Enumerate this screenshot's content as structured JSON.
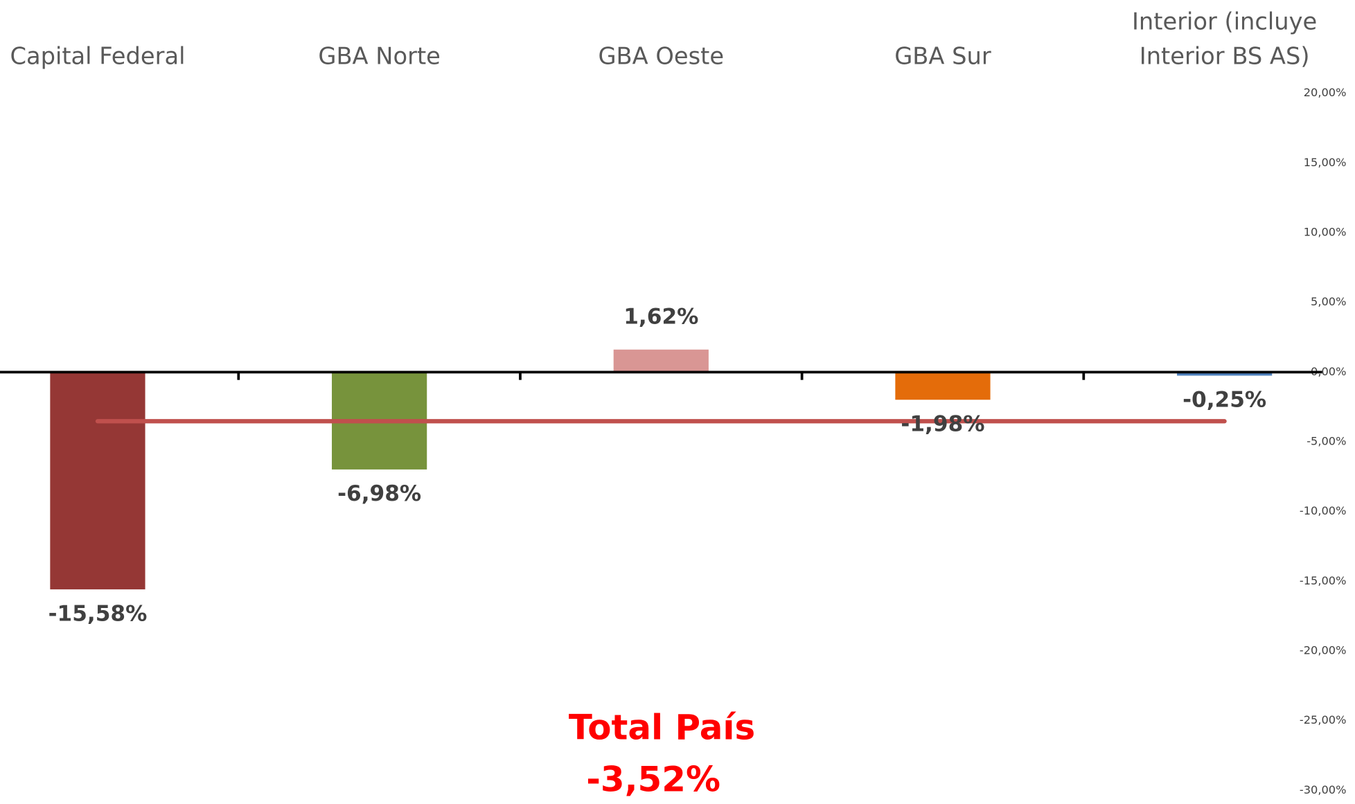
{
  "chart_data": {
    "type": "bar",
    "categories": [
      "Capital Federal",
      "GBA Norte",
      "GBA Oeste",
      "GBA Sur",
      "Interior (incluye Interior BS AS)"
    ],
    "values": [
      -15.58,
      -6.98,
      1.62,
      -1.98,
      -0.25
    ],
    "value_labels": [
      "-15,58%",
      "-6,98%",
      "1,62%",
      "-1,98%",
      "-0,25%"
    ],
    "colors": [
      "#953735",
      "#77933c",
      "#d99694",
      "#e46c0a",
      "#4f81bd"
    ],
    "ylim": [
      -30,
      20
    ],
    "yticks": [
      {
        "value": -30,
        "label": "-30,00%"
      },
      {
        "value": -25,
        "label": "-25,00%"
      },
      {
        "value": -20,
        "label": "-20,00%"
      },
      {
        "value": -15,
        "label": "-15,00%"
      },
      {
        "value": -10,
        "label": "-10,00%"
      },
      {
        "value": -5,
        "label": "-5,00%"
      },
      {
        "value": 0,
        "label": "0,00%"
      },
      {
        "value": 5,
        "label": "5,00%"
      },
      {
        "value": 10,
        "label": "10,00%"
      },
      {
        "value": 15,
        "label": "15,00%"
      },
      {
        "value": 20,
        "label": "20,00%"
      }
    ],
    "y_axis_side": "right",
    "total": {
      "label": "Total País",
      "value": -3.52,
      "value_label": "-3,52%",
      "color": "#c0504d",
      "text_color": "#ff0000"
    }
  }
}
